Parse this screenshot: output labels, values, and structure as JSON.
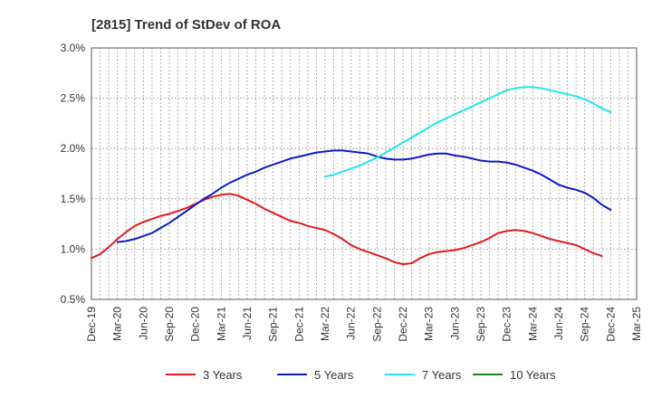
{
  "chart_data": {
    "type": "line",
    "title": "[2815]  Trend of StDev of ROA",
    "xlabel": "",
    "ylabel": "",
    "ylim": [
      0.5,
      3.0
    ],
    "y_ticks": [
      "0.5%",
      "1.0%",
      "1.5%",
      "2.0%",
      "2.5%",
      "3.0%"
    ],
    "x_range": [
      "2019-12",
      "2025-03"
    ],
    "x_ticks": [
      "Dec-19",
      "Mar-20",
      "Jun-20",
      "Sep-20",
      "Dec-20",
      "Mar-21",
      "Jun-21",
      "Sep-21",
      "Dec-21",
      "Mar-22",
      "Jun-22",
      "Sep-22",
      "Dec-22",
      "Mar-23",
      "Jun-23",
      "Sep-23",
      "Dec-23",
      "Mar-24",
      "Jun-24",
      "Sep-24",
      "Dec-24",
      "Mar-25"
    ],
    "grid": true,
    "legend_position": "bottom",
    "series": [
      {
        "name": "3 Years",
        "color": "#e31a1c",
        "points": [
          [
            "2019-12",
            0.91
          ],
          [
            "2020-01",
            0.95
          ],
          [
            "2020-02",
            1.02
          ],
          [
            "2020-03",
            1.1
          ],
          [
            "2020-04",
            1.17
          ],
          [
            "2020-05",
            1.23
          ],
          [
            "2020-06",
            1.27
          ],
          [
            "2020-07",
            1.3
          ],
          [
            "2020-08",
            1.33
          ],
          [
            "2020-09",
            1.35
          ],
          [
            "2020-10",
            1.38
          ],
          [
            "2020-11",
            1.41
          ],
          [
            "2020-12",
            1.45
          ],
          [
            "2021-01",
            1.49
          ],
          [
            "2021-02",
            1.52
          ],
          [
            "2021-03",
            1.54
          ],
          [
            "2021-04",
            1.55
          ],
          [
            "2021-05",
            1.53
          ],
          [
            "2021-06",
            1.49
          ],
          [
            "2021-07",
            1.45
          ],
          [
            "2021-08",
            1.4
          ],
          [
            "2021-09",
            1.36
          ],
          [
            "2021-10",
            1.32
          ],
          [
            "2021-11",
            1.28
          ],
          [
            "2021-12",
            1.26
          ],
          [
            "2022-01",
            1.23
          ],
          [
            "2022-02",
            1.21
          ],
          [
            "2022-03",
            1.19
          ],
          [
            "2022-04",
            1.15
          ],
          [
            "2022-05",
            1.1
          ],
          [
            "2022-06",
            1.04
          ],
          [
            "2022-07",
            1.0
          ],
          [
            "2022-08",
            0.97
          ],
          [
            "2022-09",
            0.94
          ],
          [
            "2022-10",
            0.91
          ],
          [
            "2022-11",
            0.87
          ],
          [
            "2022-12",
            0.85
          ],
          [
            "2023-01",
            0.86
          ],
          [
            "2023-02",
            0.91
          ],
          [
            "2023-03",
            0.95
          ],
          [
            "2023-04",
            0.97
          ],
          [
            "2023-05",
            0.98
          ],
          [
            "2023-06",
            0.99
          ],
          [
            "2023-07",
            1.01
          ],
          [
            "2023-08",
            1.04
          ],
          [
            "2023-09",
            1.07
          ],
          [
            "2023-10",
            1.11
          ],
          [
            "2023-11",
            1.16
          ],
          [
            "2023-12",
            1.18
          ],
          [
            "2024-01",
            1.19
          ],
          [
            "2024-02",
            1.18
          ],
          [
            "2024-03",
            1.16
          ],
          [
            "2024-04",
            1.13
          ],
          [
            "2024-05",
            1.1
          ],
          [
            "2024-06",
            1.08
          ],
          [
            "2024-07",
            1.06
          ],
          [
            "2024-08",
            1.04
          ],
          [
            "2024-09",
            1.0
          ],
          [
            "2024-10",
            0.96
          ],
          [
            "2024-11",
            0.93
          ]
        ]
      },
      {
        "name": "5 Years",
        "color": "#0a1bc8",
        "points": [
          [
            "2020-03",
            1.07
          ],
          [
            "2020-04",
            1.08
          ],
          [
            "2020-05",
            1.1
          ],
          [
            "2020-06",
            1.13
          ],
          [
            "2020-07",
            1.16
          ],
          [
            "2020-08",
            1.21
          ],
          [
            "2020-09",
            1.26
          ],
          [
            "2020-10",
            1.32
          ],
          [
            "2020-11",
            1.38
          ],
          [
            "2020-12",
            1.44
          ],
          [
            "2021-01",
            1.5
          ],
          [
            "2021-02",
            1.55
          ],
          [
            "2021-03",
            1.61
          ],
          [
            "2021-04",
            1.66
          ],
          [
            "2021-05",
            1.7
          ],
          [
            "2021-06",
            1.74
          ],
          [
            "2021-07",
            1.77
          ],
          [
            "2021-08",
            1.81
          ],
          [
            "2021-09",
            1.84
          ],
          [
            "2021-10",
            1.87
          ],
          [
            "2021-11",
            1.9
          ],
          [
            "2021-12",
            1.92
          ],
          [
            "2022-01",
            1.94
          ],
          [
            "2022-02",
            1.96
          ],
          [
            "2022-03",
            1.97
          ],
          [
            "2022-04",
            1.98
          ],
          [
            "2022-05",
            1.98
          ],
          [
            "2022-06",
            1.97
          ],
          [
            "2022-07",
            1.96
          ],
          [
            "2022-08",
            1.95
          ],
          [
            "2022-09",
            1.92
          ],
          [
            "2022-10",
            1.9
          ],
          [
            "2022-11",
            1.89
          ],
          [
            "2022-12",
            1.89
          ],
          [
            "2023-01",
            1.9
          ],
          [
            "2023-02",
            1.92
          ],
          [
            "2023-03",
            1.94
          ],
          [
            "2023-04",
            1.95
          ],
          [
            "2023-05",
            1.95
          ],
          [
            "2023-06",
            1.93
          ],
          [
            "2023-07",
            1.92
          ],
          [
            "2023-08",
            1.9
          ],
          [
            "2023-09",
            1.88
          ],
          [
            "2023-10",
            1.87
          ],
          [
            "2023-11",
            1.87
          ],
          [
            "2023-12",
            1.86
          ],
          [
            "2024-01",
            1.84
          ],
          [
            "2024-02",
            1.81
          ],
          [
            "2024-03",
            1.78
          ],
          [
            "2024-04",
            1.74
          ],
          [
            "2024-05",
            1.69
          ],
          [
            "2024-06",
            1.64
          ],
          [
            "2024-07",
            1.61
          ],
          [
            "2024-08",
            1.59
          ],
          [
            "2024-09",
            1.56
          ],
          [
            "2024-10",
            1.51
          ],
          [
            "2024-11",
            1.44
          ],
          [
            "2024-12",
            1.39
          ]
        ]
      },
      {
        "name": "7 Years",
        "color": "#22e5ee",
        "points": [
          [
            "2022-03",
            1.72
          ],
          [
            "2022-04",
            1.74
          ],
          [
            "2022-05",
            1.77
          ],
          [
            "2022-06",
            1.8
          ],
          [
            "2022-07",
            1.83
          ],
          [
            "2022-08",
            1.87
          ],
          [
            "2022-09",
            1.91
          ],
          [
            "2022-10",
            1.96
          ],
          [
            "2022-11",
            2.01
          ],
          [
            "2022-12",
            2.06
          ],
          [
            "2023-01",
            2.11
          ],
          [
            "2023-02",
            2.16
          ],
          [
            "2023-03",
            2.21
          ],
          [
            "2023-04",
            2.26
          ],
          [
            "2023-05",
            2.3
          ],
          [
            "2023-06",
            2.34
          ],
          [
            "2023-07",
            2.38
          ],
          [
            "2023-08",
            2.42
          ],
          [
            "2023-09",
            2.46
          ],
          [
            "2023-10",
            2.5
          ],
          [
            "2023-11",
            2.54
          ],
          [
            "2023-12",
            2.58
          ],
          [
            "2024-01",
            2.6
          ],
          [
            "2024-02",
            2.61
          ],
          [
            "2024-03",
            2.61
          ],
          [
            "2024-04",
            2.6
          ],
          [
            "2024-05",
            2.58
          ],
          [
            "2024-06",
            2.56
          ],
          [
            "2024-07",
            2.54
          ],
          [
            "2024-08",
            2.52
          ],
          [
            "2024-09",
            2.49
          ],
          [
            "2024-10",
            2.45
          ],
          [
            "2024-11",
            2.4
          ],
          [
            "2024-12",
            2.36
          ]
        ]
      },
      {
        "name": "10 Years",
        "color": "#1a8a1a",
        "points": []
      }
    ]
  }
}
